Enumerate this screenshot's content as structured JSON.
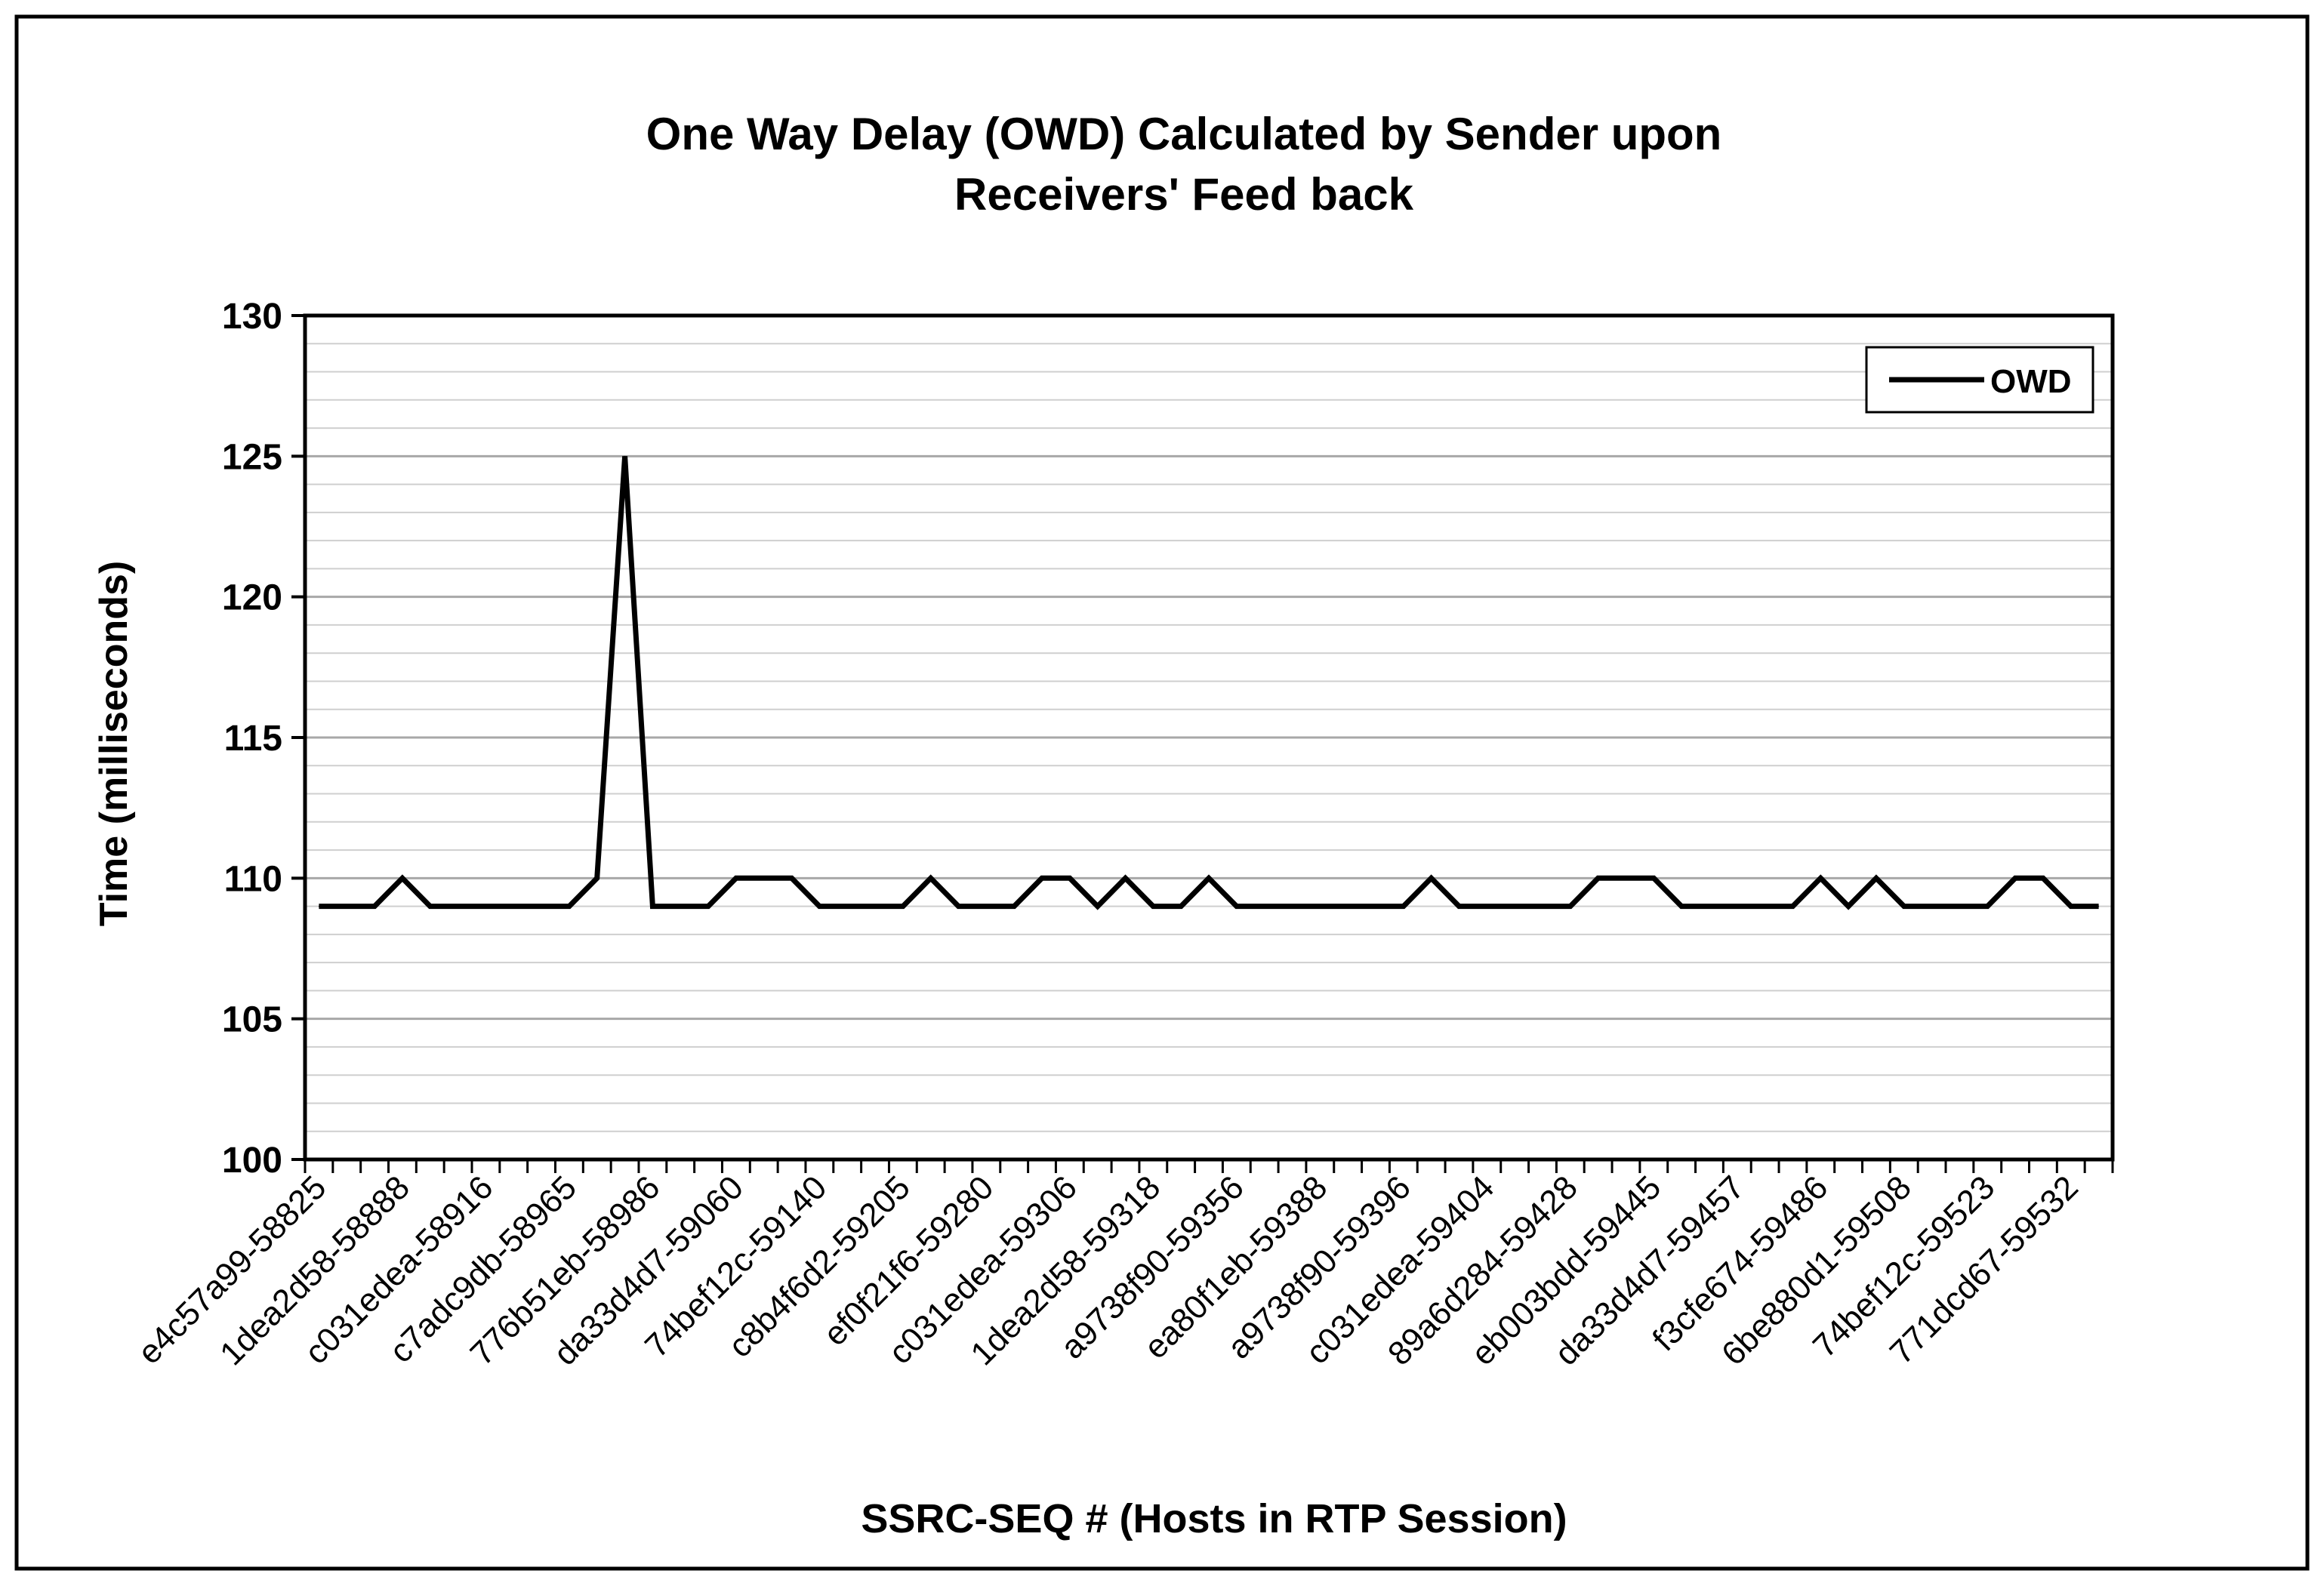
{
  "chart_data": {
    "type": "line",
    "title_line1": "One Way Delay (OWD) Calculated by Sender upon",
    "title_line2": "Receivers' Feed back",
    "xlabel": "SSRC-SEQ # (Hosts in RTP Session)",
    "ylabel": "Time (milliseconds)",
    "ylim": [
      100,
      130
    ],
    "y_ticks": [
      100,
      105,
      110,
      115,
      120,
      125,
      130
    ],
    "y_minor_step": 1,
    "grid": true,
    "legend": "top-right",
    "category_count": 65,
    "tick_labels": [
      "e4c57a99-58825",
      "1dea2d58-58888",
      "c031edea-58916",
      "c7adc9db-58965",
      "776b51eb-58986",
      "da33d4d7-59060",
      "74bef12c-59140",
      "c8b4f6d2-59205",
      "ef0f21f6-59280",
      "c031edea-59306",
      "1dea2d58-59318",
      "a9738f90-59356",
      "ea80f1eb-59388",
      "a9738f90-59396",
      "c031edea-59404",
      "89a6d284-59428",
      "eb003bdd-59445",
      "da33d4d7-59457",
      "f3cfe674-59486",
      "6be880d1-59508",
      "74bef12c-59523",
      "771dcd67-59532"
    ],
    "series": [
      {
        "name": "OWD",
        "color": "#000000",
        "values": [
          109,
          109,
          109,
          110,
          109,
          109,
          109,
          109,
          109,
          109,
          110,
          125,
          109,
          109,
          109,
          110,
          110,
          110,
          109,
          109,
          109,
          109,
          110,
          109,
          109,
          109,
          110,
          110,
          109,
          110,
          109,
          109,
          110,
          109,
          109,
          109,
          109,
          109,
          109,
          109,
          110,
          109,
          109,
          109,
          109,
          109,
          110,
          110,
          110,
          109,
          109,
          109,
          109,
          109,
          110,
          109,
          110,
          109,
          109,
          109,
          109,
          110,
          110,
          109,
          109
        ]
      }
    ]
  }
}
